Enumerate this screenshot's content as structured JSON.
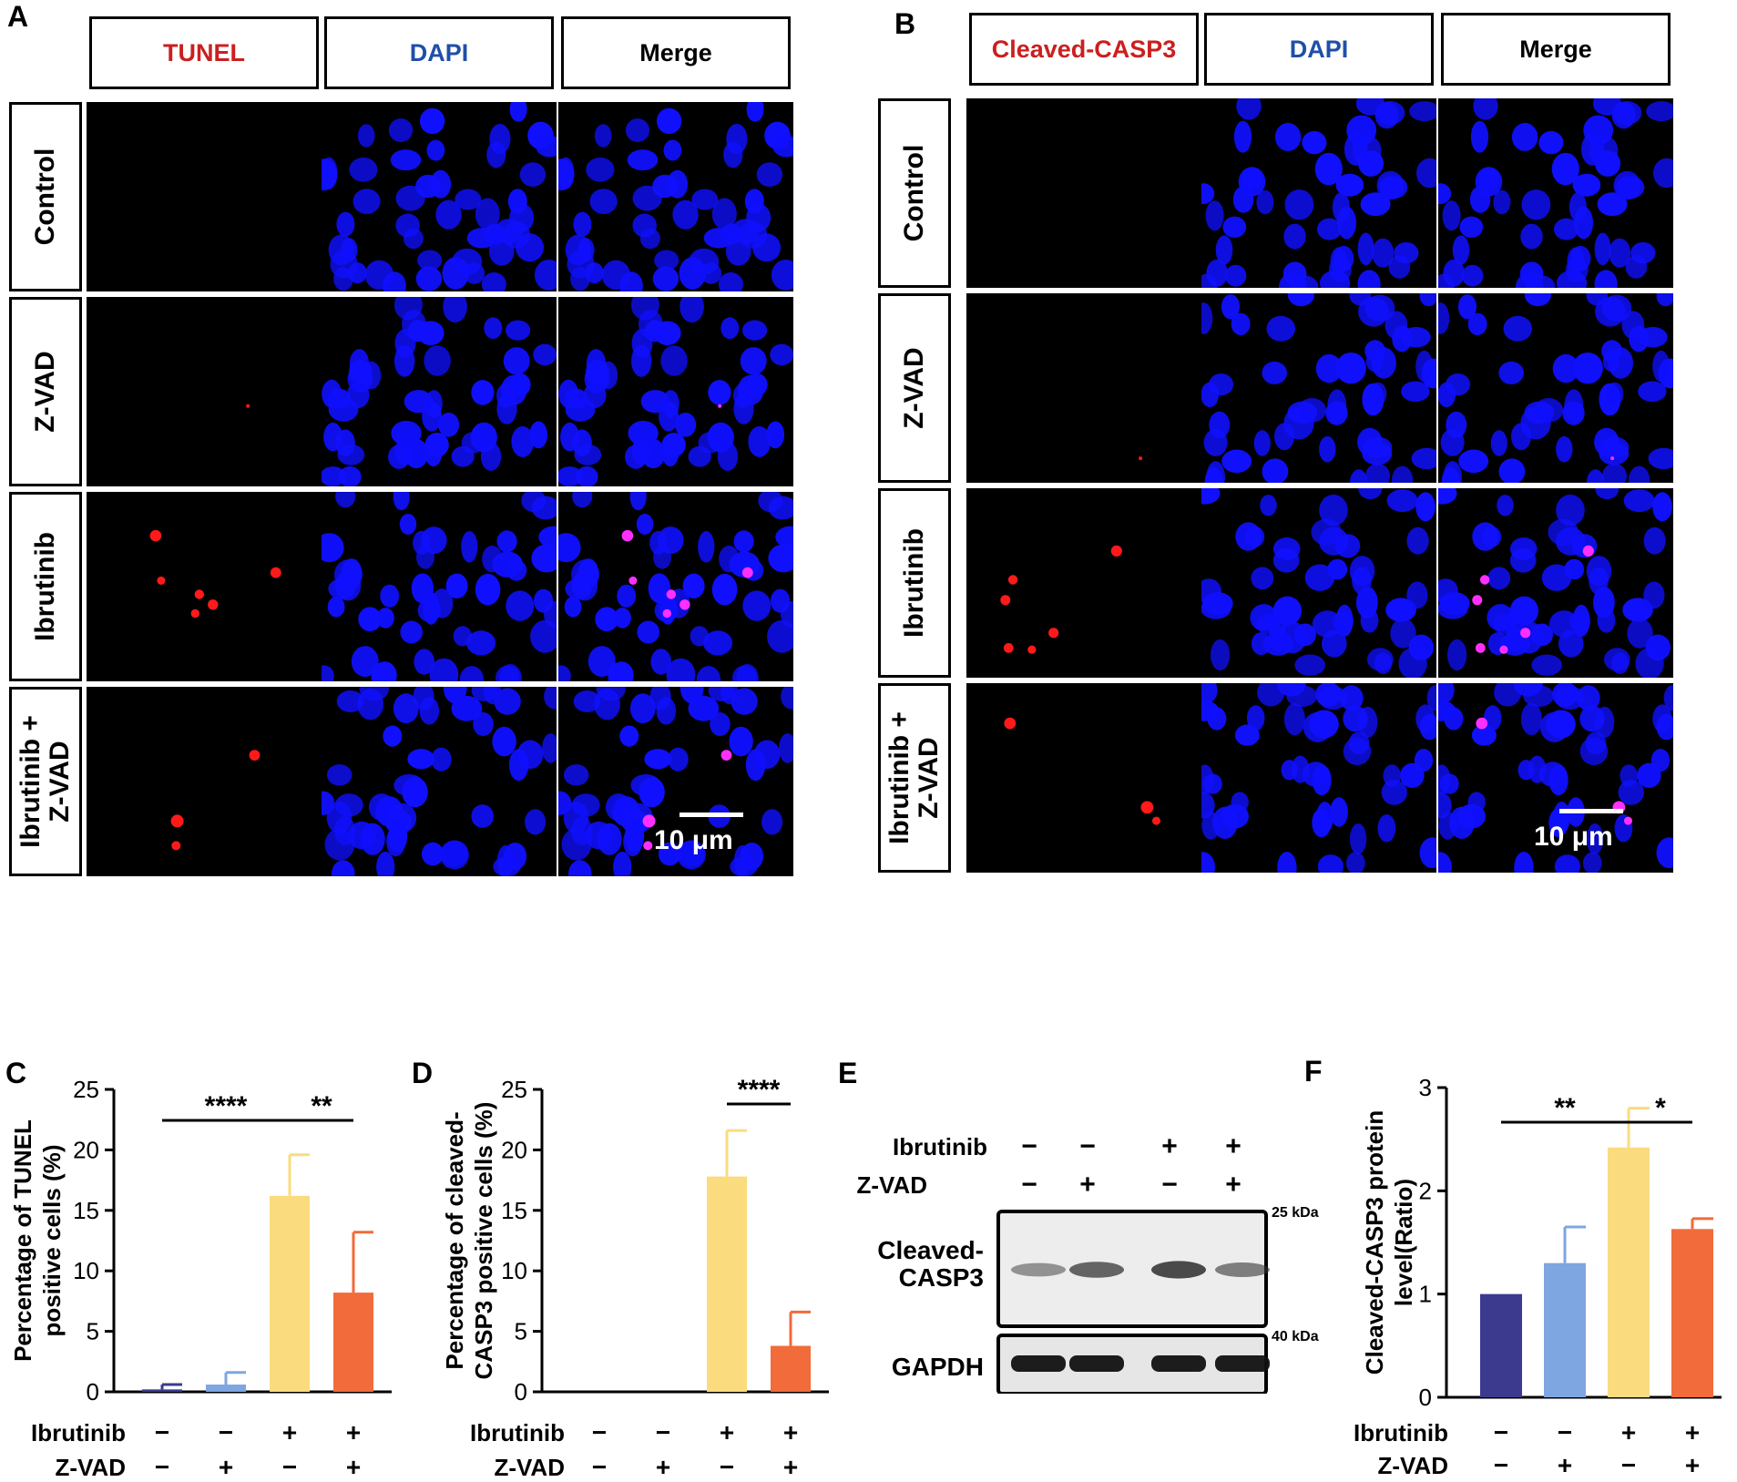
{
  "panels": {
    "A": "A",
    "B": "B",
    "C": "C",
    "D": "D",
    "E": "E",
    "F": "F"
  },
  "panelA": {
    "headers": [
      "TUNEL",
      "DAPI",
      "Merge"
    ],
    "rows": [
      "Control",
      "Z-VAD",
      "Ibrutinib",
      "Ibrutinib +\nZ-VAD"
    ],
    "scalebar": "10 μm"
  },
  "panelB": {
    "headers": [
      "Cleaved-CASP3",
      "DAPI",
      "Merge"
    ],
    "rows": [
      "Control",
      "Z-VAD",
      "Ibrutinib",
      "Ibrutinib +\nZ-VAD"
    ],
    "scalebar": "10 μm"
  },
  "colors": {
    "red_label": "#cc1f1f",
    "blue_label": "#1f4fa8",
    "dapi": "#1010ff",
    "tunel": "#ff1a1a",
    "merge_pos": "#ff30ff",
    "bar1": "#3b3a8f",
    "bar2": "#7ea6e0",
    "bar3": "#fadc7f",
    "bar4": "#f26b3a"
  },
  "conditions": {
    "ibrutinib_label": "Ibrutinib",
    "zvad_label": "Z-VAD",
    "ibrutinib": [
      "−",
      "−",
      "+",
      "+"
    ],
    "zvad": [
      "−",
      "+",
      "−",
      "+"
    ]
  },
  "chart_data": [
    {
      "id": "C",
      "type": "bar",
      "categories": [
        "Control",
        "Z-VAD",
        "Ibrutinib",
        "Ibrutinib + Z-VAD"
      ],
      "values": [
        0.2,
        0.6,
        16.2,
        8.2
      ],
      "errors": [
        0.4,
        1.0,
        3.4,
        5.0
      ],
      "ylabel": "Percentage of TUNEL\npositive cells (%)",
      "ylim": [
        0,
        25
      ],
      "yticks": [
        "0",
        "5",
        "10",
        "15",
        "20",
        "25"
      ],
      "significance": [
        {
          "from": 0,
          "to": 2,
          "label": "****"
        },
        {
          "from": 2,
          "to": 3,
          "label": "**"
        }
      ]
    },
    {
      "id": "D",
      "type": "bar",
      "categories": [
        "Control",
        "Z-VAD",
        "Ibrutinib",
        "Ibrutinib + Z-VAD"
      ],
      "values": [
        0,
        0,
        17.8,
        3.8
      ],
      "errors": [
        0,
        0,
        3.8,
        2.8
      ],
      "ylabel": "Percentage of cleaved-\nCASP3 positive cells (%)",
      "ylim": [
        0,
        25
      ],
      "yticks": [
        "0",
        "5",
        "10",
        "15",
        "20",
        "25"
      ],
      "significance": [
        {
          "from": 2,
          "to": 3,
          "label": "****"
        }
      ]
    },
    {
      "id": "F",
      "type": "bar",
      "categories": [
        "Control",
        "Z-VAD",
        "Ibrutinib",
        "Ibrutinib + Z-VAD"
      ],
      "values": [
        1.0,
        1.3,
        2.42,
        1.63
      ],
      "errors": [
        0,
        0.35,
        0.38,
        0.1
      ],
      "ylabel": "Cleaved-CASP3 protein\nlevel(Ratio)",
      "ylim": [
        0,
        3
      ],
      "yticks": [
        "0",
        "1",
        "2",
        "3"
      ],
      "significance": [
        {
          "from": 0,
          "to": 2,
          "label": "**"
        },
        {
          "from": 2,
          "to": 3,
          "label": "*"
        }
      ]
    }
  ],
  "panelE": {
    "ibrutinib_label": "Ibrutinib",
    "zvad_label": "Z-VAD",
    "ibrutinib": [
      "−",
      "−",
      "+",
      "+"
    ],
    "zvad": [
      "−",
      "+",
      "−",
      "+"
    ],
    "blot1_label": "Cleaved-\nCASP3",
    "blot2_label": "GAPDH",
    "kda1": "25 kDa",
    "kda2": "40 kDa",
    "band_intensity_casp3": [
      0.35,
      0.7,
      0.9,
      0.5
    ],
    "band_intensity_gapdh": [
      1,
      1,
      1,
      1
    ]
  }
}
